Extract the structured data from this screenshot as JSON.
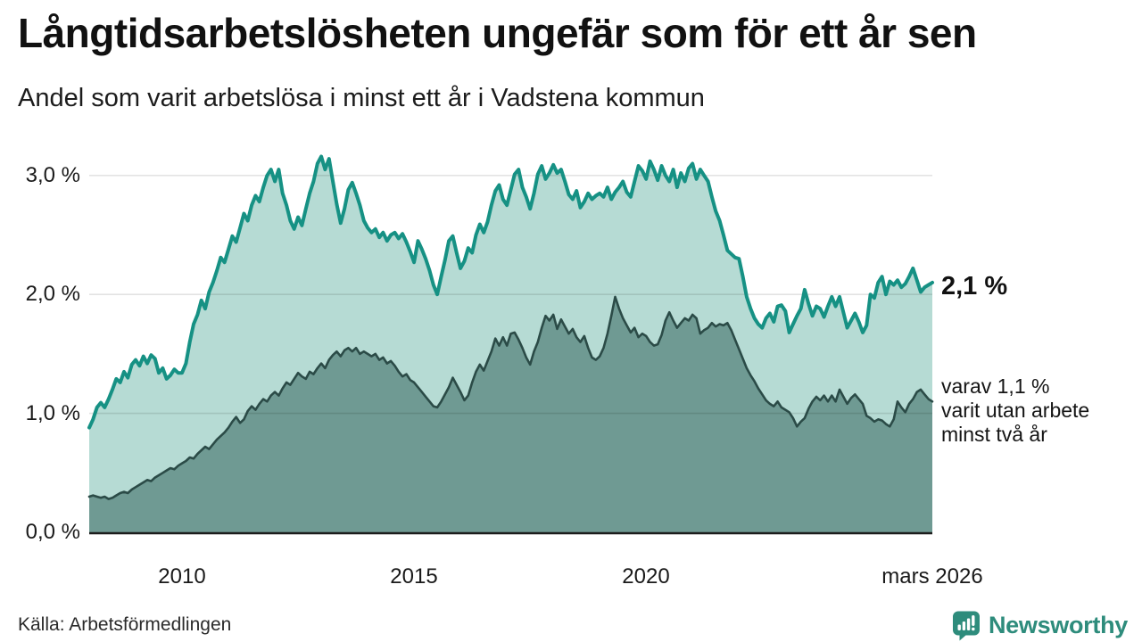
{
  "header": {
    "title": "Långtidsarbetslösheten ungefär som för ett år sen",
    "subtitle": "Andel som varit arbetslösa i minst ett år i Vadstena kommun"
  },
  "annotations": {
    "total_end_label": "2,1 %",
    "subset_end_label_lines": [
      "varav 1,1 %",
      "varit utan arbete",
      "minst två år"
    ]
  },
  "footer": {
    "source": "Källa: Arbetsförmedlingen",
    "logo_text": "Newsworthy"
  },
  "colors": {
    "total_line": "#169184",
    "total_fill": "#b6dbd4",
    "subset_line": "#2b4b47",
    "subset_fill": "#6f9a93",
    "grid": "rgba(0,0,0,0.11)",
    "axis": "#1c1c1c",
    "brand_teal": "#2e8c7c"
  },
  "chart_data": {
    "type": "area",
    "title": "Långtidsarbetslösheten ungefär som för ett år sen",
    "subtitle": "Andel som varit arbetslösa i minst ett år i Vadstena kommun",
    "x_start": "2008-01",
    "x_end": "2026-03",
    "x_unit": "month",
    "ylim": [
      0,
      3.3
    ],
    "grid_values": [
      1,
      2,
      3
    ],
    "y_tick_values": [
      3,
      2,
      1,
      0
    ],
    "y_tick_labels": [
      "3,0 %",
      "2,0 %",
      "1,0 %",
      "0,0 %"
    ],
    "x_tick_indices": [
      24,
      84,
      144,
      218
    ],
    "x_tick_labels": [
      "2010",
      "2015",
      "2020",
      "mars 2026"
    ],
    "legend_position": "right-of-line-end",
    "grid": true,
    "series": [
      {
        "name": "Andel arbetslösa i minst ett år",
        "end_value": 2.1,
        "end_label": "2,1 %",
        "values": [
          0.88,
          0.95,
          1.05,
          1.09,
          1.05,
          1.12,
          1.2,
          1.29,
          1.26,
          1.35,
          1.3,
          1.41,
          1.45,
          1.4,
          1.48,
          1.42,
          1.49,
          1.46,
          1.34,
          1.38,
          1.29,
          1.32,
          1.37,
          1.34,
          1.34,
          1.42,
          1.6,
          1.75,
          1.83,
          1.95,
          1.88,
          2.02,
          2.1,
          2.2,
          2.31,
          2.27,
          2.38,
          2.49,
          2.44,
          2.56,
          2.68,
          2.62,
          2.75,
          2.83,
          2.78,
          2.9,
          3.0,
          3.05,
          2.95,
          3.05,
          2.85,
          2.75,
          2.62,
          2.55,
          2.65,
          2.58,
          2.72,
          2.85,
          2.95,
          3.1,
          3.16,
          3.05,
          3.14,
          2.95,
          2.76,
          2.6,
          2.72,
          2.88,
          2.94,
          2.85,
          2.75,
          2.62,
          2.56,
          2.52,
          2.55,
          2.48,
          2.52,
          2.45,
          2.5,
          2.52,
          2.47,
          2.51,
          2.44,
          2.36,
          2.27,
          2.45,
          2.38,
          2.3,
          2.2,
          2.08,
          2.0,
          2.15,
          2.29,
          2.45,
          2.49,
          2.35,
          2.22,
          2.28,
          2.39,
          2.35,
          2.5,
          2.59,
          2.52,
          2.61,
          2.75,
          2.87,
          2.92,
          2.8,
          2.75,
          2.88,
          3.01,
          3.05,
          2.9,
          2.82,
          2.72,
          2.85,
          3.01,
          3.08,
          2.97,
          3.02,
          3.09,
          3.02,
          3.05,
          2.95,
          2.84,
          2.8,
          2.87,
          2.73,
          2.78,
          2.85,
          2.8,
          2.83,
          2.85,
          2.82,
          2.9,
          2.8,
          2.86,
          2.9,
          2.95,
          2.86,
          2.82,
          2.95,
          3.08,
          3.04,
          2.97,
          3.12,
          3.05,
          2.96,
          3.08,
          3.0,
          2.95,
          3.05,
          2.9,
          3.02,
          2.95,
          3.06,
          3.1,
          2.97,
          3.05,
          3.0,
          2.95,
          2.82,
          2.7,
          2.62,
          2.5,
          2.37,
          2.34,
          2.31,
          2.3,
          2.15,
          1.98,
          1.88,
          1.8,
          1.75,
          1.72,
          1.8,
          1.84,
          1.77,
          1.9,
          1.91,
          1.86,
          1.68,
          1.75,
          1.82,
          1.88,
          2.04,
          1.92,
          1.82,
          1.9,
          1.88,
          1.81,
          1.9,
          1.98,
          1.9,
          1.98,
          1.85,
          1.72,
          1.78,
          1.84,
          1.77,
          1.68,
          1.74,
          2.0,
          1.97,
          2.1,
          2.15,
          2.0,
          2.11,
          2.08,
          2.12,
          2.06,
          2.09,
          2.15,
          2.22,
          2.12,
          2.02,
          2.06,
          2.08,
          2.1
        ]
      },
      {
        "name": "varav utan arbete minst två år",
        "end_value": 1.1,
        "end_label": "1,1 %",
        "values": [
          0.3,
          0.31,
          0.3,
          0.29,
          0.3,
          0.28,
          0.29,
          0.31,
          0.33,
          0.34,
          0.33,
          0.36,
          0.38,
          0.4,
          0.42,
          0.44,
          0.43,
          0.46,
          0.48,
          0.5,
          0.52,
          0.54,
          0.53,
          0.56,
          0.58,
          0.6,
          0.63,
          0.62,
          0.66,
          0.69,
          0.72,
          0.7,
          0.74,
          0.78,
          0.81,
          0.84,
          0.88,
          0.93,
          0.97,
          0.92,
          0.95,
          1.02,
          1.06,
          1.03,
          1.08,
          1.12,
          1.1,
          1.15,
          1.18,
          1.15,
          1.21,
          1.26,
          1.24,
          1.29,
          1.34,
          1.31,
          1.29,
          1.35,
          1.33,
          1.38,
          1.42,
          1.38,
          1.45,
          1.49,
          1.52,
          1.48,
          1.53,
          1.55,
          1.52,
          1.55,
          1.5,
          1.52,
          1.5,
          1.48,
          1.5,
          1.45,
          1.47,
          1.42,
          1.44,
          1.4,
          1.35,
          1.31,
          1.33,
          1.28,
          1.26,
          1.22,
          1.18,
          1.14,
          1.1,
          1.06,
          1.05,
          1.1,
          1.16,
          1.22,
          1.3,
          1.24,
          1.18,
          1.11,
          1.15,
          1.26,
          1.35,
          1.41,
          1.36,
          1.44,
          1.52,
          1.63,
          1.57,
          1.64,
          1.57,
          1.67,
          1.68,
          1.62,
          1.55,
          1.47,
          1.41,
          1.52,
          1.6,
          1.72,
          1.82,
          1.78,
          1.83,
          1.71,
          1.79,
          1.73,
          1.67,
          1.71,
          1.64,
          1.6,
          1.65,
          1.55,
          1.47,
          1.45,
          1.48,
          1.55,
          1.67,
          1.82,
          1.98,
          1.88,
          1.8,
          1.74,
          1.68,
          1.72,
          1.64,
          1.67,
          1.65,
          1.6,
          1.57,
          1.58,
          1.66,
          1.78,
          1.85,
          1.78,
          1.72,
          1.76,
          1.8,
          1.78,
          1.83,
          1.8,
          1.67,
          1.7,
          1.72,
          1.76,
          1.73,
          1.75,
          1.74,
          1.76,
          1.7,
          1.62,
          1.54,
          1.46,
          1.38,
          1.32,
          1.27,
          1.21,
          1.16,
          1.11,
          1.08,
          1.06,
          1.1,
          1.05,
          1.03,
          1.01,
          0.96,
          0.89,
          0.93,
          0.96,
          1.04,
          1.1,
          1.14,
          1.11,
          1.15,
          1.1,
          1.15,
          1.1,
          1.2,
          1.14,
          1.08,
          1.13,
          1.16,
          1.12,
          1.08,
          0.98,
          0.96,
          0.93,
          0.95,
          0.94,
          0.91,
          0.89,
          0.95,
          1.1,
          1.05,
          1.01,
          1.08,
          1.12,
          1.18,
          1.2,
          1.16,
          1.12,
          1.1
        ]
      }
    ]
  }
}
